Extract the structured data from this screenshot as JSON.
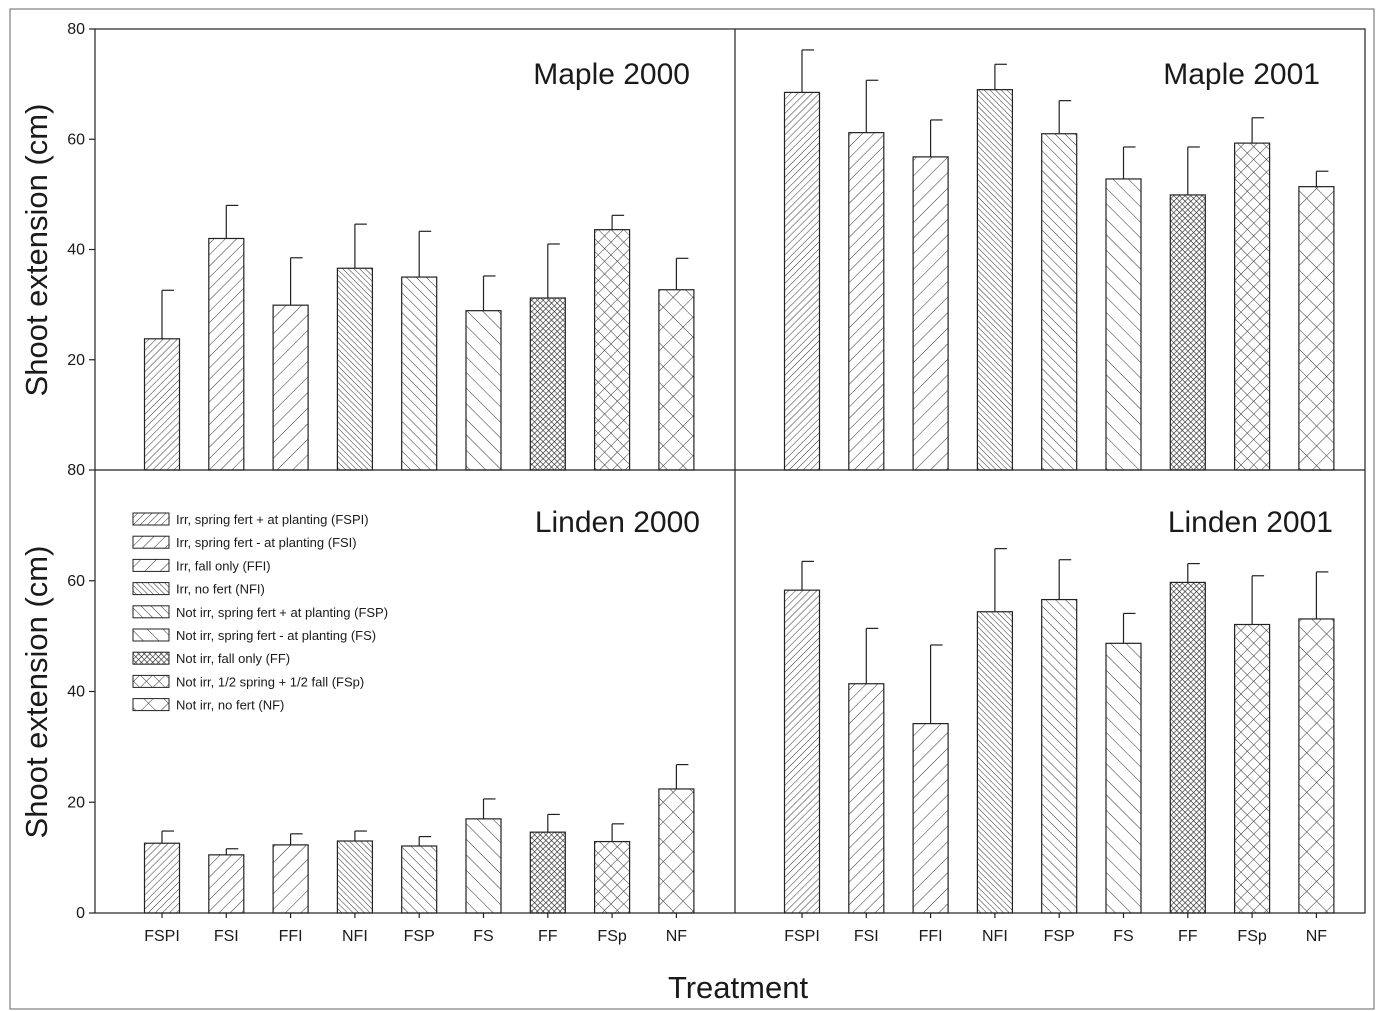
{
  "figure": {
    "ylabel": "Shoot extension (cm)",
    "xlabel": "Treatment"
  },
  "legend": {
    "entries": [
      {
        "label": "Irr, spring fert + at planting (FSPI)",
        "pattern": "FSPI"
      },
      {
        "label": "Irr, spring fert - at planting (FSI)",
        "pattern": "FSI"
      },
      {
        "label": "Irr, fall only (FFI)",
        "pattern": "FFI"
      },
      {
        "label": "Irr, no fert (NFI)",
        "pattern": "NFI"
      },
      {
        "label": "Not irr, spring fert + at planting (FSP)",
        "pattern": "FSP"
      },
      {
        "label": "Not irr, spring fert - at planting (FS)",
        "pattern": "FS"
      },
      {
        "label": "Not irr, fall only (FF)",
        "pattern": "FF"
      },
      {
        "label": "Not irr, 1/2 spring + 1/2 fall (FSp)",
        "pattern": "FSp"
      },
      {
        "label": "Not irr, no fert (NF)",
        "pattern": "NF"
      }
    ]
  },
  "chart_data": [
    {
      "type": "bar",
      "title": "Maple 2000",
      "categories": [
        "FSPI",
        "FSI",
        "FFI",
        "NFI",
        "FSP",
        "FS",
        "FF",
        "FSp",
        "NF"
      ],
      "values": [
        23.8,
        42.0,
        29.9,
        36.6,
        35.0,
        28.9,
        31.2,
        43.6,
        32.7
      ],
      "errors": [
        8.8,
        6.0,
        8.6,
        8.0,
        8.3,
        6.3,
        9.8,
        2.6,
        5.7
      ],
      "ylim": [
        0,
        80
      ],
      "yticks": [
        20,
        40,
        60,
        80
      ],
      "ytick_labels": [
        "20",
        "40",
        "60",
        "80"
      ]
    },
    {
      "type": "bar",
      "title": "Maple 2001",
      "categories": [
        "FSPI",
        "FSI",
        "FFI",
        "NFI",
        "FSP",
        "FS",
        "FF",
        "FSp",
        "NF"
      ],
      "values": [
        68.5,
        61.2,
        56.8,
        69.0,
        61.0,
        52.8,
        49.9,
        59.3,
        51.4
      ],
      "errors": [
        7.7,
        9.5,
        6.7,
        4.6,
        6.0,
        5.8,
        8.7,
        4.6,
        2.8
      ],
      "ylim": [
        0,
        80
      ],
      "yticks": [],
      "ytick_labels": []
    },
    {
      "type": "bar",
      "title": "Linden 2000",
      "categories": [
        "FSPI",
        "FSI",
        "FFI",
        "NFI",
        "FSP",
        "FS",
        "FF",
        "FSp",
        "NF"
      ],
      "values": [
        12.6,
        10.5,
        12.3,
        13.0,
        12.1,
        17.0,
        14.6,
        12.9,
        22.4
      ],
      "errors": [
        2.2,
        1.1,
        2.0,
        1.8,
        1.7,
        3.6,
        3.2,
        3.2,
        4.4
      ],
      "ylim": [
        0,
        80
      ],
      "yticks": [
        0,
        20,
        40,
        60,
        80
      ],
      "ytick_labels": [
        "0",
        "20",
        "40",
        "60",
        "80"
      ]
    },
    {
      "type": "bar",
      "title": "Linden 2001",
      "categories": [
        "FSPI",
        "FSI",
        "FFI",
        "NFI",
        "FSP",
        "FS",
        "FF",
        "FSp",
        "NF"
      ],
      "values": [
        58.3,
        41.4,
        34.2,
        54.4,
        56.6,
        48.7,
        59.7,
        52.1,
        53.1
      ],
      "errors": [
        5.2,
        10.0,
        14.2,
        11.4,
        7.2,
        5.4,
        3.4,
        8.8,
        8.5
      ],
      "ylim": [
        0,
        80
      ],
      "yticks": [],
      "ytick_labels": []
    }
  ]
}
